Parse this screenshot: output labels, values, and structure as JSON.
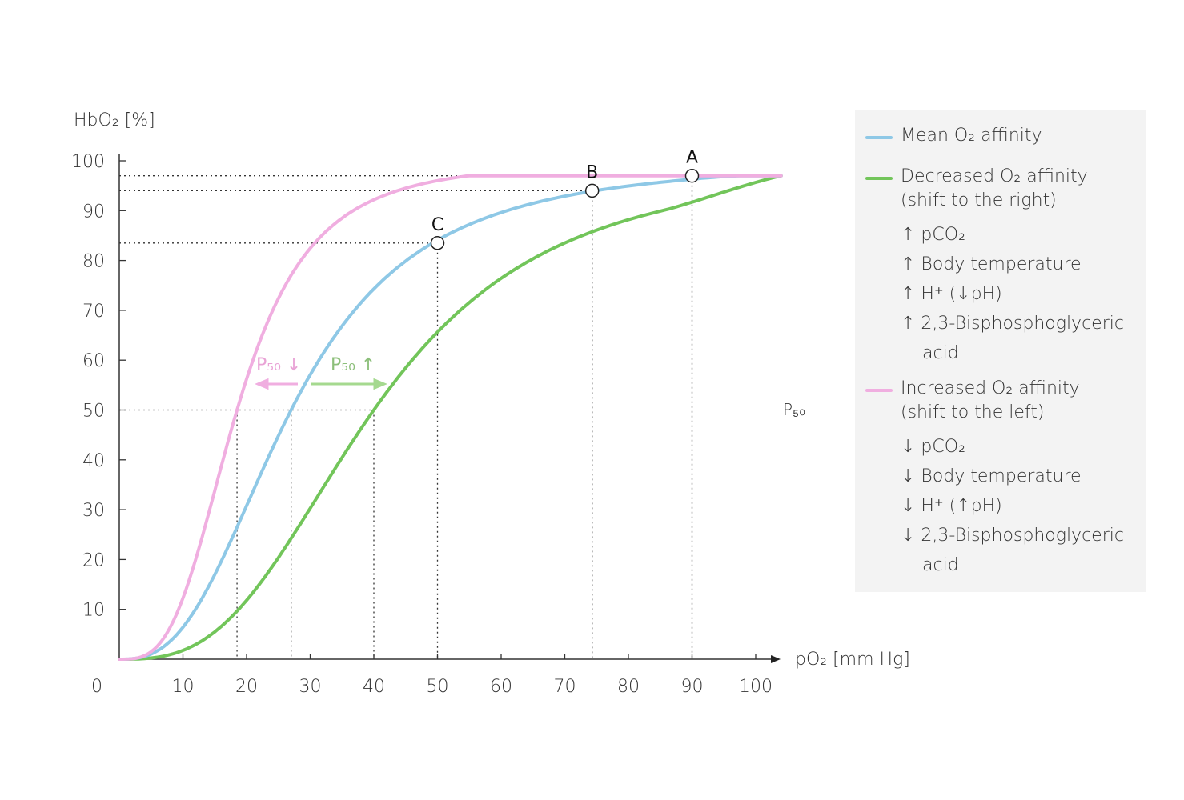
{
  "chart_data": {
    "type": "line",
    "title": "",
    "xlabel": "pO₂ [mm Hg]",
    "ylabel": "HbO₂ [%]",
    "xlim": [
      0,
      104
    ],
    "ylim": [
      0,
      100
    ],
    "x_ticks": [
      "0",
      "10",
      "20",
      "30",
      "40",
      "50",
      "60",
      "70",
      "80",
      "90",
      "100"
    ],
    "y_ticks": [
      "10",
      "20",
      "30",
      "40",
      "50",
      "60",
      "70",
      "80",
      "90",
      "100"
    ],
    "series": [
      {
        "name": "Mean O₂ affinity",
        "color": "#8ec8e6",
        "p50": 27,
        "hill_n": 2.7
      },
      {
        "name": "Decreased O₂ affinity",
        "color": "#72c55a",
        "p50": 40,
        "hill_n": 2.9
      },
      {
        "name": "Increased O₂ affinity",
        "color": "#f0aee0",
        "p50": 18.5,
        "hill_n": 3.2
      }
    ],
    "points": [
      {
        "label": "A",
        "x": 90,
        "y": 97
      },
      {
        "label": "B",
        "x": 74.3,
        "y": 94
      },
      {
        "label": "C",
        "x": 50,
        "y": 83.5
      }
    ],
    "p50_line": {
      "y": 50,
      "label": "P₅₀"
    },
    "p50_drop_x": [
      18.5,
      27,
      40
    ],
    "annotations": [
      {
        "text": "P₅₀ ↓",
        "color": "#e9a3d6"
      },
      {
        "text": "P₅₀ ↑",
        "color": "#8cbf7a"
      }
    ]
  },
  "legend": {
    "mean": "Mean O₂ affinity",
    "decreased": "Decreased O₂ affinity",
    "decreased_sub": "(shift to the right)",
    "decreased_items": [
      "↑ pCO₂",
      "↑ Body temperature",
      "↑ H⁺ (↓pH)",
      "↑ 2,3-Bisphosphoglyceric",
      "acid"
    ],
    "increased": "Increased O₂ affinity",
    "increased_sub": "(shift to the left)",
    "increased_items": [
      "↓ pCO₂",
      "↓ Body temperature",
      "↓ H⁺ (↑pH)",
      "↓ 2,3-Bisphosphoglyceric",
      "acid"
    ]
  }
}
